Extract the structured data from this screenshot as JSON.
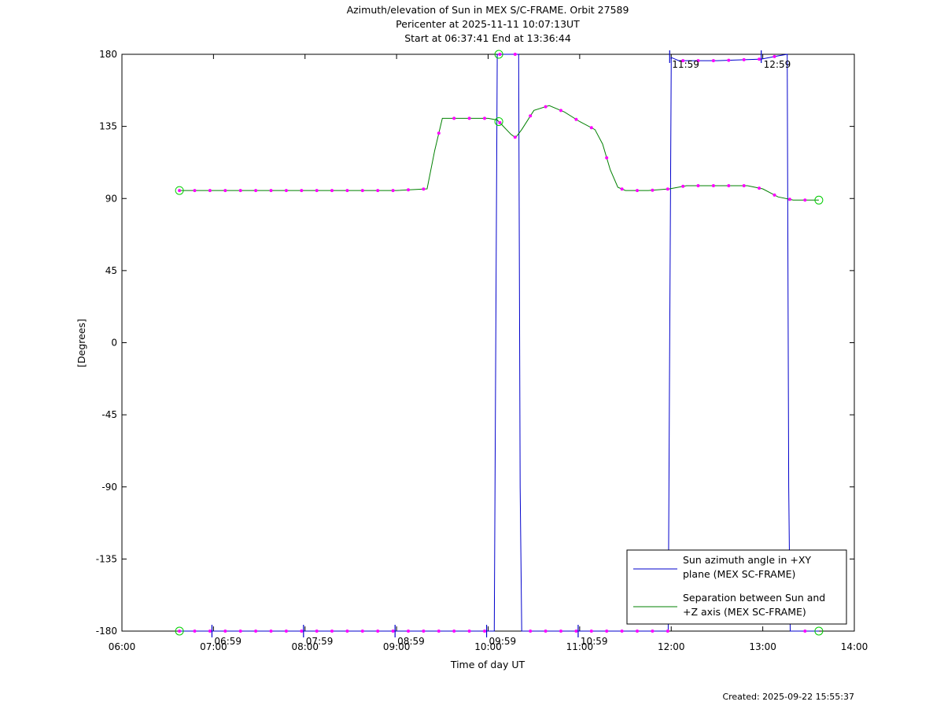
{
  "chart_data": {
    "type": "line",
    "title": [
      "Azimuth/elevation of Sun in MEX S/C-FRAME.  Orbit 27589",
      "Pericenter at 2025-11-11 10:07:13UT",
      "Start at 06:37:41 End at 13:36:44"
    ],
    "xlabel": "Time of day UT",
    "ylabel": "[Degrees]",
    "footer": "Created: 2025-09-22 15:55:37",
    "xlim": [
      "06:00",
      "14:00"
    ],
    "ylim": [
      -180,
      180
    ],
    "x_ticks": [
      "06:00",
      "07:00",
      "08:00",
      "09:00",
      "10:00",
      "11:00",
      "12:00",
      "13:00",
      "14:00"
    ],
    "y_ticks": [
      "180",
      "135",
      "90",
      "45",
      "0",
      "-45",
      "-90",
      "-135",
      "-180"
    ],
    "grid": false,
    "legend_position": "bottom-right",
    "colors": {
      "azimuth": "#0000cc",
      "separation": "#008000",
      "markers": "#ff00ff",
      "endpoints": "#00cc00"
    },
    "time_labels": [
      {
        "label": "06:59",
        "time": "06:59",
        "at": "bottom"
      },
      {
        "label": "07:59",
        "time": "07:59",
        "at": "bottom"
      },
      {
        "label": "08:59",
        "time": "08:59",
        "at": "bottom"
      },
      {
        "label": "09:59",
        "time": "09:59",
        "at": "bottom"
      },
      {
        "label": "10:59",
        "time": "10:59",
        "at": "bottom"
      },
      {
        "label": "11:59",
        "time": "11:59",
        "at": "top"
      },
      {
        "label": "12:59",
        "time": "12:59",
        "at": "top"
      }
    ],
    "series": [
      {
        "name": "Sun azimuth angle in +XY plane (MEX SC-FRAME)",
        "legend_lines": [
          "Sun azimuth angle in +XY",
          "plane (MEX SC-FRAME)"
        ],
        "x": [
          "06:37:41",
          "10:04",
          "10:05",
          "10:06",
          "10:20",
          "10:21",
          "10:22",
          "11:58",
          "11:59",
          "12:00",
          "12:05",
          "12:30",
          "12:59",
          "13:10",
          "13:16",
          "13:17",
          "13:18",
          "13:36:44"
        ],
        "y": [
          -180,
          -180,
          0,
          180,
          180,
          -90,
          -180,
          -180,
          0,
          178,
          176,
          176,
          177,
          179,
          180,
          -90,
          -180,
          -180
        ]
      },
      {
        "name": "Separation between Sun and +Z axis (MEX SC-FRAME)",
        "legend_lines": [
          "Separation between Sun and",
          "+Z axis (MEX SC-FRAME)"
        ],
        "x": [
          "06:37:41",
          "09:00",
          "09:20",
          "09:25",
          "09:30",
          "10:00",
          "10:06",
          "10:10",
          "10:15",
          "10:18",
          "10:22",
          "10:30",
          "10:40",
          "10:50",
          "11:00",
          "11:10",
          "11:15",
          "11:20",
          "11:25",
          "11:30",
          "11:45",
          "11:59",
          "12:10",
          "12:30",
          "12:50",
          "13:00",
          "13:10",
          "13:20",
          "13:36:44"
        ],
        "y": [
          95,
          95,
          96,
          120,
          140,
          140,
          139,
          135,
          130,
          128,
          133,
          145,
          148,
          144,
          138,
          133,
          124,
          108,
          97,
          95,
          95,
          96,
          98,
          98,
          98,
          96,
          91,
          89,
          89
        ]
      }
    ]
  }
}
